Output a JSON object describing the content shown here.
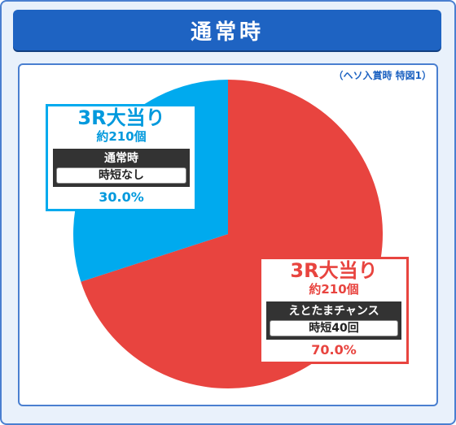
{
  "header": {
    "title": "通常時"
  },
  "note": "（ヘソ入賞時 特図1）",
  "chart_data": {
    "type": "pie",
    "slices": [
      {
        "label": "3R大当り",
        "sub": "約210個",
        "mode": "えとたまチャンス",
        "mode_detail": "時短40回",
        "value": 70.0,
        "value_label": "70.0%",
        "color": "#e8443f"
      },
      {
        "label": "3R大当り",
        "sub": "約210個",
        "mode": "通常時",
        "mode_detail": "時短なし",
        "value": 30.0,
        "value_label": "30.0%",
        "color": "#00aaee"
      }
    ]
  }
}
